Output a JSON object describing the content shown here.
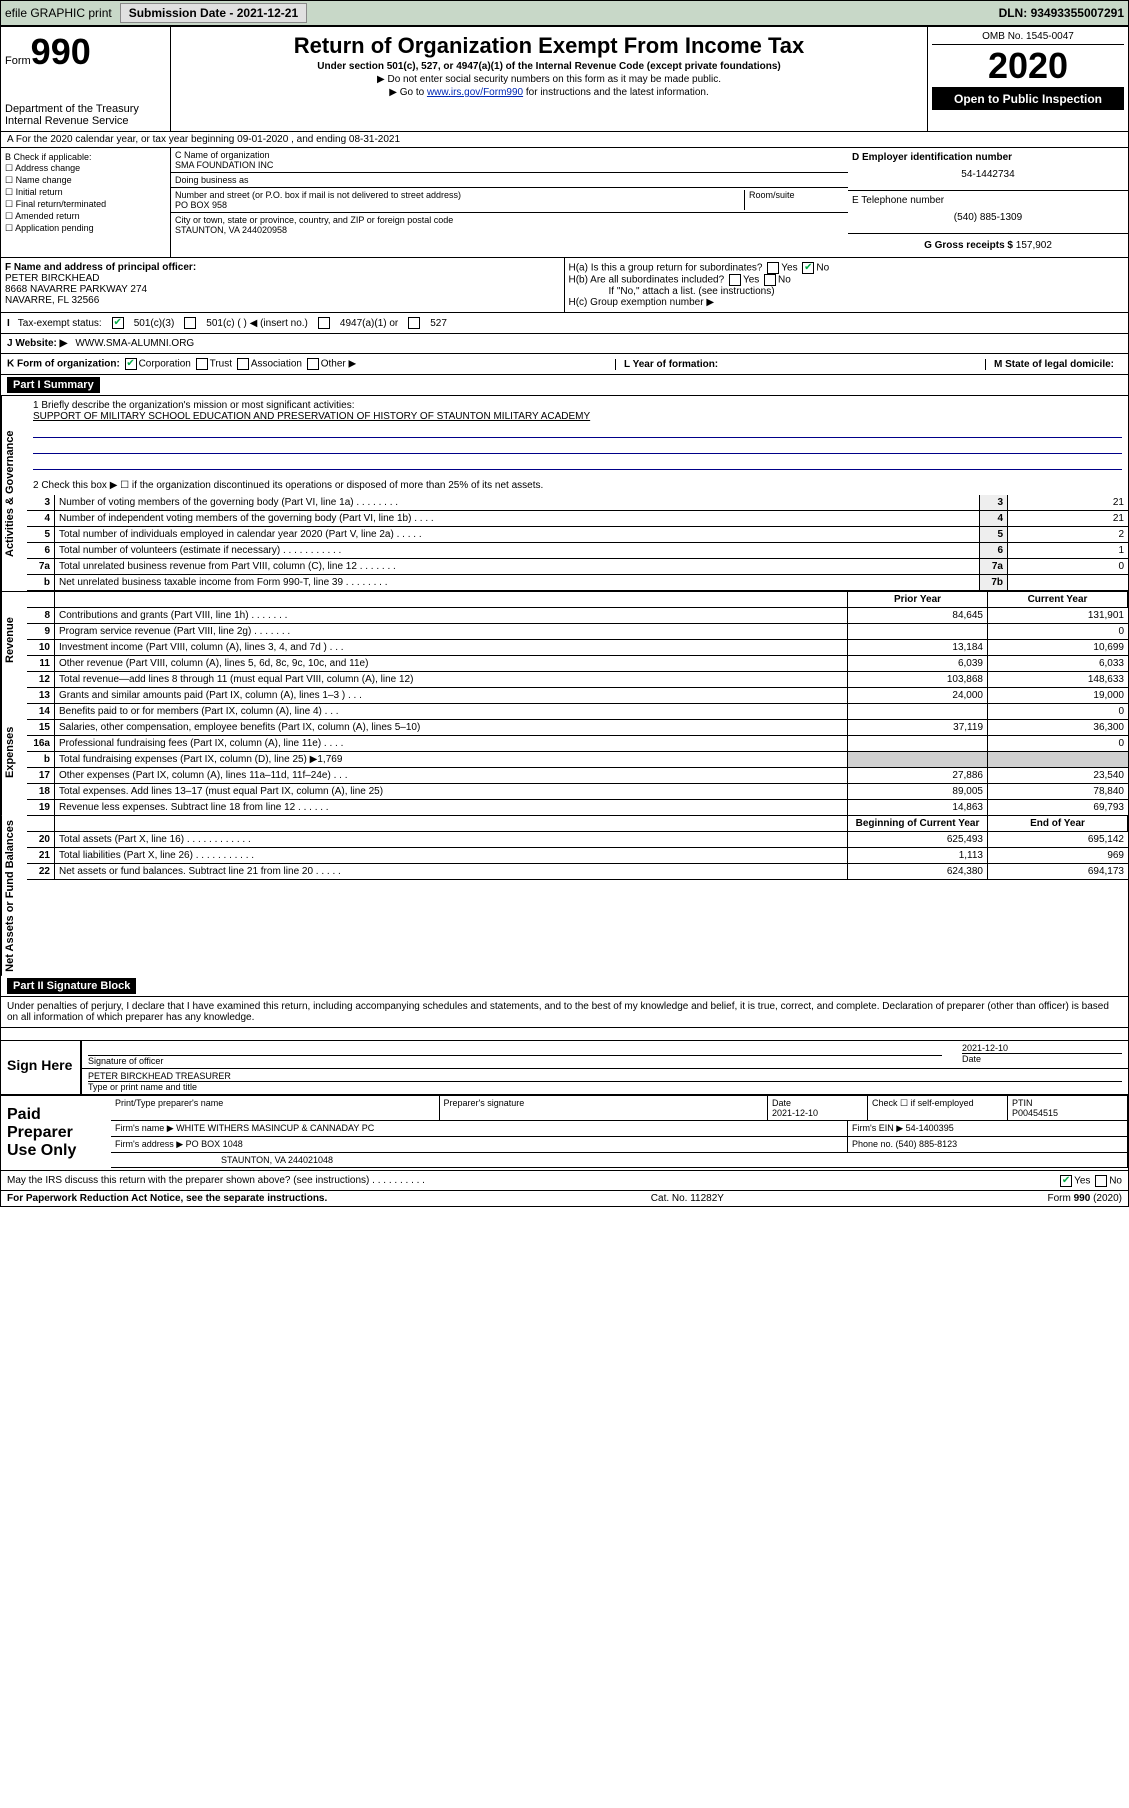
{
  "topbar": {
    "efile": "efile GRAPHIC print",
    "subdate_label": "Submission Date - ",
    "subdate": "2021-12-21",
    "dln_label": "DLN: ",
    "dln": "93493355007291"
  },
  "header": {
    "form_label": "Form",
    "form_num": "990",
    "dept": "Department of the Treasury\nInternal Revenue Service",
    "title": "Return of Organization Exempt From Income Tax",
    "sub1": "Under section 501(c), 527, or 4947(a)(1) of the Internal Revenue Code (except private foundations)",
    "sub2": "▶ Do not enter social security numbers on this form as it may be made public.",
    "sub3a": "▶ Go to ",
    "sub3link": "www.irs.gov/Form990",
    "sub3b": " for instructions and the latest information.",
    "omb": "OMB No. 1545-0047",
    "year": "2020",
    "open": "Open to Public Inspection"
  },
  "rowA": "A For the 2020 calendar year, or tax year beginning 09-01-2020    , and ending 08-31-2021",
  "colB": {
    "label": "B Check if applicable:",
    "items": [
      "Address change",
      "Name change",
      "Initial return",
      "Final return/terminated",
      "Amended return",
      "Application pending"
    ]
  },
  "colC": {
    "name_label": "C Name of organization",
    "name": "SMA FOUNDATION INC",
    "dba_label": "Doing business as",
    "dba": "",
    "street_label": "Number and street (or P.O. box if mail is not delivered to street address)",
    "room_label": "Room/suite",
    "street": "PO BOX 958",
    "city_label": "City or town, state or province, country, and ZIP or foreign postal code",
    "city": "STAUNTON, VA  244020958"
  },
  "colD": {
    "ein_label": "D Employer identification number",
    "ein": "54-1442734",
    "phone_label": "E Telephone number",
    "phone": "(540) 885-1309",
    "gross_label": "G Gross receipts $ ",
    "gross": "157,902"
  },
  "rowF": {
    "label": "F  Name and address of principal officer:",
    "name": "PETER BIRCKHEAD",
    "addr1": "8668 NAVARRE PARKWAY 274",
    "addr2": "NAVARRE, FL  32566"
  },
  "rowH": {
    "ha": "H(a)  Is this a group return for subordinates?",
    "hb": "H(b)  Are all subordinates included?",
    "hb_note": "If \"No,\" attach a list. (see instructions)",
    "hc": "H(c)  Group exemption number ▶"
  },
  "taxrow": {
    "label": "Tax-exempt status:",
    "o1": "501(c)(3)",
    "o2": "501(c) (   ) ◀ (insert no.)",
    "o3": "4947(a)(1) or",
    "o4": "527"
  },
  "website": {
    "label": "J   Website: ▶  ",
    "url": "WWW.SMA-ALUMNI.ORG"
  },
  "korg": {
    "label": "K Form of organization:",
    "opts": [
      "Corporation",
      "Trust",
      "Association",
      "Other ▶"
    ],
    "l": "L Year of formation:",
    "m": "M State of legal domicile:"
  },
  "part1": {
    "head": "Part I       Summary",
    "l1a": "1  Briefly describe the organization's mission or most significant activities:",
    "l1b": "SUPPORT OF MILITARY SCHOOL EDUCATION AND PRESERVATION OF HISTORY OF STAUNTON MILITARY ACADEMY",
    "l2": "2   Check this box ▶ ☐  if the organization discontinued its operations or disposed of more than 25% of its net assets.",
    "lines": [
      {
        "n": "3",
        "t": "Number of voting members of the governing body (Part VI, line 1a)   .    .    .    .    .    .    .    .",
        "box": "3",
        "v": "21"
      },
      {
        "n": "4",
        "t": "Number of independent voting members of the governing body (Part VI, line 1b)   .    .    .    .",
        "box": "4",
        "v": "21"
      },
      {
        "n": "5",
        "t": "Total number of individuals employed in calendar year 2020 (Part V, line 2a)   .    .    .    .    .",
        "box": "5",
        "v": "2"
      },
      {
        "n": "6",
        "t": "Total number of volunteers (estimate if necessary)   .    .    .    .    .    .    .    .    .    .    .",
        "box": "6",
        "v": "1"
      },
      {
        "n": "7a",
        "t": "Total unrelated business revenue from Part VIII, column (C), line 12   .    .    .    .    .    .    .",
        "box": "7a",
        "v": "0"
      },
      {
        "n": "b",
        "t": "Net unrelated business taxable income from Form 990-T, line 39   .    .    .    .    .    .    .    .",
        "box": "7b",
        "v": ""
      }
    ]
  },
  "fin": {
    "head_prior": "Prior Year",
    "head_curr": "Current Year",
    "sections": [
      {
        "label": "Revenue",
        "rows": [
          {
            "n": "8",
            "t": "Contributions and grants (Part VIII, line 1h)   .    .    .    .    .    .    .",
            "p": "84,645",
            "c": "131,901"
          },
          {
            "n": "9",
            "t": "Program service revenue (Part VIII, line 2g)   .    .    .    .    .    .    .",
            "p": "",
            "c": "0"
          },
          {
            "n": "10",
            "t": "Investment income (Part VIII, column (A), lines 3, 4, and 7d )   .    .    .",
            "p": "13,184",
            "c": "10,699"
          },
          {
            "n": "11",
            "t": "Other revenue (Part VIII, column (A), lines 5, 6d, 8c, 9c, 10c, and 11e)",
            "p": "6,039",
            "c": "6,033"
          },
          {
            "n": "12",
            "t": "Total revenue—add lines 8 through 11 (must equal Part VIII, column (A), line 12)",
            "p": "103,868",
            "c": "148,633"
          }
        ]
      },
      {
        "label": "Expenses",
        "rows": [
          {
            "n": "13",
            "t": "Grants and similar amounts paid (Part IX, column (A), lines 1–3 )   .    .    .",
            "p": "24,000",
            "c": "19,000"
          },
          {
            "n": "14",
            "t": "Benefits paid to or for members (Part IX, column (A), line 4)   .    .    .",
            "p": "",
            "c": "0"
          },
          {
            "n": "15",
            "t": "Salaries, other compensation, employee benefits (Part IX, column (A), lines 5–10)",
            "p": "37,119",
            "c": "36,300"
          },
          {
            "n": "16a",
            "t": "Professional fundraising fees (Part IX, column (A), line 11e)   .    .    .    .",
            "p": "",
            "c": "0"
          },
          {
            "n": "b",
            "t": "Total fundraising expenses (Part IX, column (D), line 25) ▶1,769",
            "p": "shade",
            "c": "shade"
          },
          {
            "n": "17",
            "t": "Other expenses (Part IX, column (A), lines 11a–11d, 11f–24e)   .    .    .",
            "p": "27,886",
            "c": "23,540"
          },
          {
            "n": "18",
            "t": "Total expenses. Add lines 13–17 (must equal Part IX, column (A), line 25)",
            "p": "89,005",
            "c": "78,840"
          },
          {
            "n": "19",
            "t": "Revenue less expenses. Subtract line 18 from line 12   .    .    .    .    .    .",
            "p": "14,863",
            "c": "69,793"
          }
        ]
      },
      {
        "label": "Net Assets or Fund Balances",
        "head_p": "Beginning of Current Year",
        "head_c": "End of Year",
        "rows": [
          {
            "n": "20",
            "t": "Total assets (Part X, line 16)   .    .    .    .    .    .    .    .    .    .    .    .",
            "p": "625,493",
            "c": "695,142"
          },
          {
            "n": "21",
            "t": "Total liabilities (Part X, line 26)   .    .    .    .    .    .    .    .    .    .    .",
            "p": "1,113",
            "c": "969"
          },
          {
            "n": "22",
            "t": "Net assets or fund balances. Subtract line 21 from line 20   .    .    .    .    .",
            "p": "624,380",
            "c": "694,173"
          }
        ]
      }
    ]
  },
  "part2": {
    "head": "Part II       Signature Block",
    "decl": "Under penalties of perjury, I declare that I have examined this return, including accompanying schedules and statements, and to the best of my knowledge and belief, it is true, correct, and complete. Declaration of preparer (other than officer) is based on all information of which preparer has any knowledge."
  },
  "sign": {
    "left": "Sign Here",
    "sig_label": "Signature of officer",
    "date_label": "Date",
    "date": "2021-12-10",
    "name": "PETER BIRCKHEAD  TREASURER",
    "name_label": "Type or print name and title"
  },
  "paid": {
    "left": "Paid Preparer Use Only",
    "h1": "Print/Type preparer's name",
    "h2": "Preparer's signature",
    "h3": "Date",
    "h3v": "2021-12-10",
    "h4": "Check ☐ if self-employed",
    "h5": "PTIN",
    "h5v": "P00454515",
    "firm_label": "Firm's name      ▶",
    "firm": "WHITE WITHERS MASINCUP & CANNADAY PC",
    "ein_label": "Firm's EIN ▶",
    "ein": "54-1400395",
    "addr_label": "Firm's address ▶",
    "addr1": "PO BOX 1048",
    "addr2": "STAUNTON, VA  244021048",
    "phone_label": "Phone no. ",
    "phone": "(540) 885-8123"
  },
  "discuss": "May the IRS discuss this return with the preparer shown above? (see instructions)   .    .    .    .    .    .    .    .    .    .",
  "footer": {
    "left": "For Paperwork Reduction Act Notice, see the separate instructions.",
    "mid": "Cat. No. 11282Y",
    "right": "Form 990 (2020)"
  }
}
